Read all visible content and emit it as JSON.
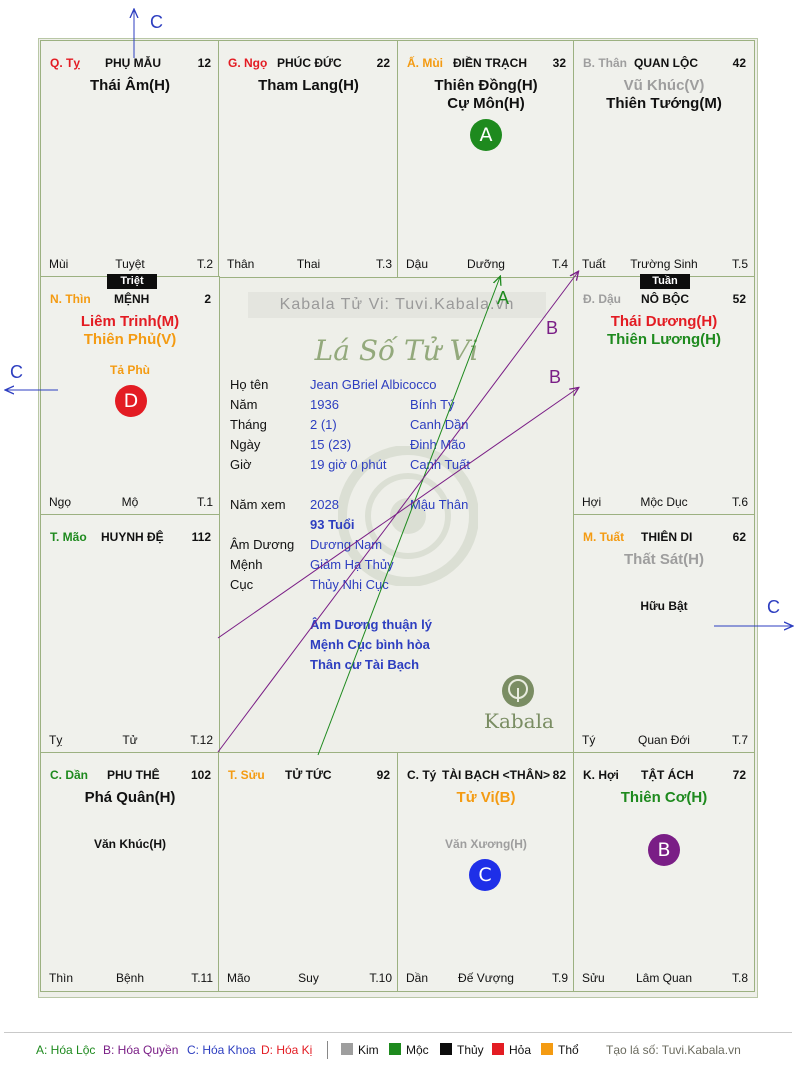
{
  "colors": {
    "green": "#1e8a1e",
    "red": "#e31c23",
    "orange": "#f49b12",
    "gray": "#9e9e9e",
    "blue": "#2d3ec0",
    "purple": "#7a1e86"
  },
  "cells": [
    {
      "id": "ty",
      "stem": "Q. Tỵ",
      "stem_color": "#e31c23",
      "palace": "PHỤ MẪU",
      "number": "12",
      "stars": [
        {
          "text": "Thái Âm(H)",
          "color": "#111111"
        }
      ],
      "minor": "",
      "bottom_left": "Mùi",
      "bottom_mid": "Tuyệt",
      "bottom_right": "T.2"
    },
    {
      "id": "ngo",
      "stem": "G. Ngọ",
      "stem_color": "#e31c23",
      "palace": "PHÚC ĐỨC",
      "number": "22",
      "stars": [
        {
          "text": "Tham Lang(H)",
          "color": "#111111"
        }
      ],
      "minor": "",
      "bottom_left": "Thân",
      "bottom_mid": "Thai",
      "bottom_right": "T.3"
    },
    {
      "id": "mui",
      "stem": "Ấ. Mùi",
      "stem_color": "#f49b12",
      "palace": "ĐIỀN TRẠCH",
      "number": "32",
      "stars": [
        {
          "text": "Thiên Đồng(H)",
          "color": "#111111"
        },
        {
          "text": "Cự Môn(H)",
          "color": "#111111"
        }
      ],
      "minor": "",
      "bottom_left": "Dậu",
      "bottom_mid": "Dưỡng",
      "bottom_right": "T.4"
    },
    {
      "id": "than",
      "stem": "B. Thân",
      "stem_color": "#9e9e9e",
      "palace": "QUAN LỘC",
      "number": "42",
      "stars": [
        {
          "text": "Vũ Khúc(V)",
          "color": "#9e9e9e"
        },
        {
          "text": "Thiên Tướng(M)",
          "color": "#111111"
        }
      ],
      "minor": "",
      "bottom_left": "Tuất",
      "bottom_mid": "Trường Sinh",
      "bottom_right": "T.5"
    },
    {
      "id": "thin",
      "stem": "N. Thìn",
      "stem_color": "#f49b12",
      "palace": "MỆNH",
      "number": "2",
      "stars": [
        {
          "text": "Liêm Trinh(M)",
          "color": "#e31c23"
        },
        {
          "text": "Thiên Phủ(V)",
          "color": "#f49b12"
        }
      ],
      "minor": "Tả Phù",
      "minor_color": "#f49b12",
      "bottom_left": "Ngọ",
      "bottom_mid": "Mộ",
      "bottom_right": "T.1"
    },
    {
      "id": "dau",
      "stem": "Đ. Dậu",
      "stem_color": "#9e9e9e",
      "palace": "NÔ BỘC",
      "number": "52",
      "stars": [
        {
          "text": "Thái Dương(H)",
          "color": "#e31c23"
        },
        {
          "text": "Thiên Lương(H)",
          "color": "#1e8a1e"
        }
      ],
      "minor": "",
      "bottom_left": "Hợi",
      "bottom_mid": "Mộc Dục",
      "bottom_right": "T.6"
    },
    {
      "id": "mao",
      "stem": "T. Mão",
      "stem_color": "#1e8a1e",
      "palace": "HUYNH ĐỆ",
      "number": "112",
      "stars": [],
      "minor": "",
      "bottom_left": "Tỵ",
      "bottom_mid": "Tử",
      "bottom_right": "T.12"
    },
    {
      "id": "tuat",
      "stem": "M. Tuất",
      "stem_color": "#f49b12",
      "palace": "THIÊN DI",
      "number": "62",
      "stars": [
        {
          "text": "Thất Sát(H)",
          "color": "#9e9e9e"
        }
      ],
      "minor": "Hữu Bật",
      "minor_color": "#111111",
      "bottom_left": "Tý",
      "bottom_mid": "Quan Đới",
      "bottom_right": "T.7"
    },
    {
      "id": "dan",
      "stem": "C. Dần",
      "stem_color": "#1e8a1e",
      "palace": "PHU THÊ",
      "number": "102",
      "stars": [
        {
          "text": "Phá Quân(H)",
          "color": "#111111"
        }
      ],
      "minor": "Văn Khúc(H)",
      "minor_color": "#111111",
      "bottom_left": "Thìn",
      "bottom_mid": "Bệnh",
      "bottom_right": "T.11"
    },
    {
      "id": "suu",
      "stem": "T. Sửu",
      "stem_color": "#f49b12",
      "palace": "TỬ TỨC",
      "number": "92",
      "stars": [],
      "minor": "",
      "bottom_left": "Mão",
      "bottom_mid": "Suy",
      "bottom_right": "T.10"
    },
    {
      "id": "ty2",
      "stem": "C. Tý",
      "stem_color": "#111111",
      "palace": "TÀI BẠCH <THÂN>",
      "number": "82",
      "stars": [
        {
          "text": "Tử Vi(B)",
          "color": "#f49b12"
        }
      ],
      "minor": "Văn Xương(H)",
      "minor_color": "#9e9e9e",
      "bottom_left": "Dần",
      "bottom_mid": "Đế Vượng",
      "bottom_right": "T.9"
    },
    {
      "id": "hoi",
      "stem": "K. Hợi",
      "stem_color": "#111111",
      "palace": "TẬT ÁCH",
      "number": "72",
      "stars": [
        {
          "text": "Thiên Cơ(H)",
          "color": "#1e8a1e"
        }
      ],
      "minor": "",
      "bottom_left": "Sửu",
      "bottom_mid": "Lâm Quan",
      "bottom_right": "T.8"
    }
  ],
  "tags": {
    "triet": "Triệt",
    "tuan": "Tuần"
  },
  "circles": {
    "a": "A",
    "b": "B",
    "c": "C",
    "d": "D"
  },
  "center": {
    "site": "Kabala Tử Vi: Tuvi.Kabala.vn",
    "title": "Lá Số Tử Vi",
    "name_label": "Họ tên",
    "name": "Jean GBriel Albicocco",
    "year_label": "Năm",
    "year": "1936",
    "year_can": "Bính Tý",
    "month_label": "Tháng",
    "month": "2  (1)",
    "month_can": "Canh Dần",
    "day_label": "Ngày",
    "day": "15  (23)",
    "day_can": "Đinh Mão",
    "hour_label": "Giờ",
    "hour": "19 giờ 0 phút",
    "hour_can": "Canh Tuất",
    "view_label": "Năm xem",
    "view_year": "2028",
    "view_can": "Mậu Thân",
    "age": "93 Tuổi",
    "amduong_label": "Âm Dương",
    "amduong": "Dương Nam",
    "menh_label": "Mệnh",
    "menh": "Giảm Hạ Thủy",
    "cuc_label": "Cục",
    "cuc": "Thủy Nhị Cục",
    "note1": "Âm Dương thuận lý",
    "note2": "Mệnh Cục bình hòa",
    "note3": "Thân cư Tài Bạch",
    "logo": "Kabala"
  },
  "arrow_labels": {
    "a": "A",
    "b1": "B",
    "b2": "B",
    "c_top": "C",
    "c_left": "C",
    "c_right": "C"
  },
  "legend": {
    "a": "A: Hóa Lộc",
    "b": "B: Hóa Quyền",
    "c": "C: Hóa Khoa",
    "d": "D: Hóa Kị",
    "kim": "Kim",
    "moc": "Mộc",
    "thuy": "Thủy",
    "hoa": "Hỏa",
    "tho": "Thổ",
    "credit": "Tạo lá số: Tuvi.Kabala.vn"
  }
}
